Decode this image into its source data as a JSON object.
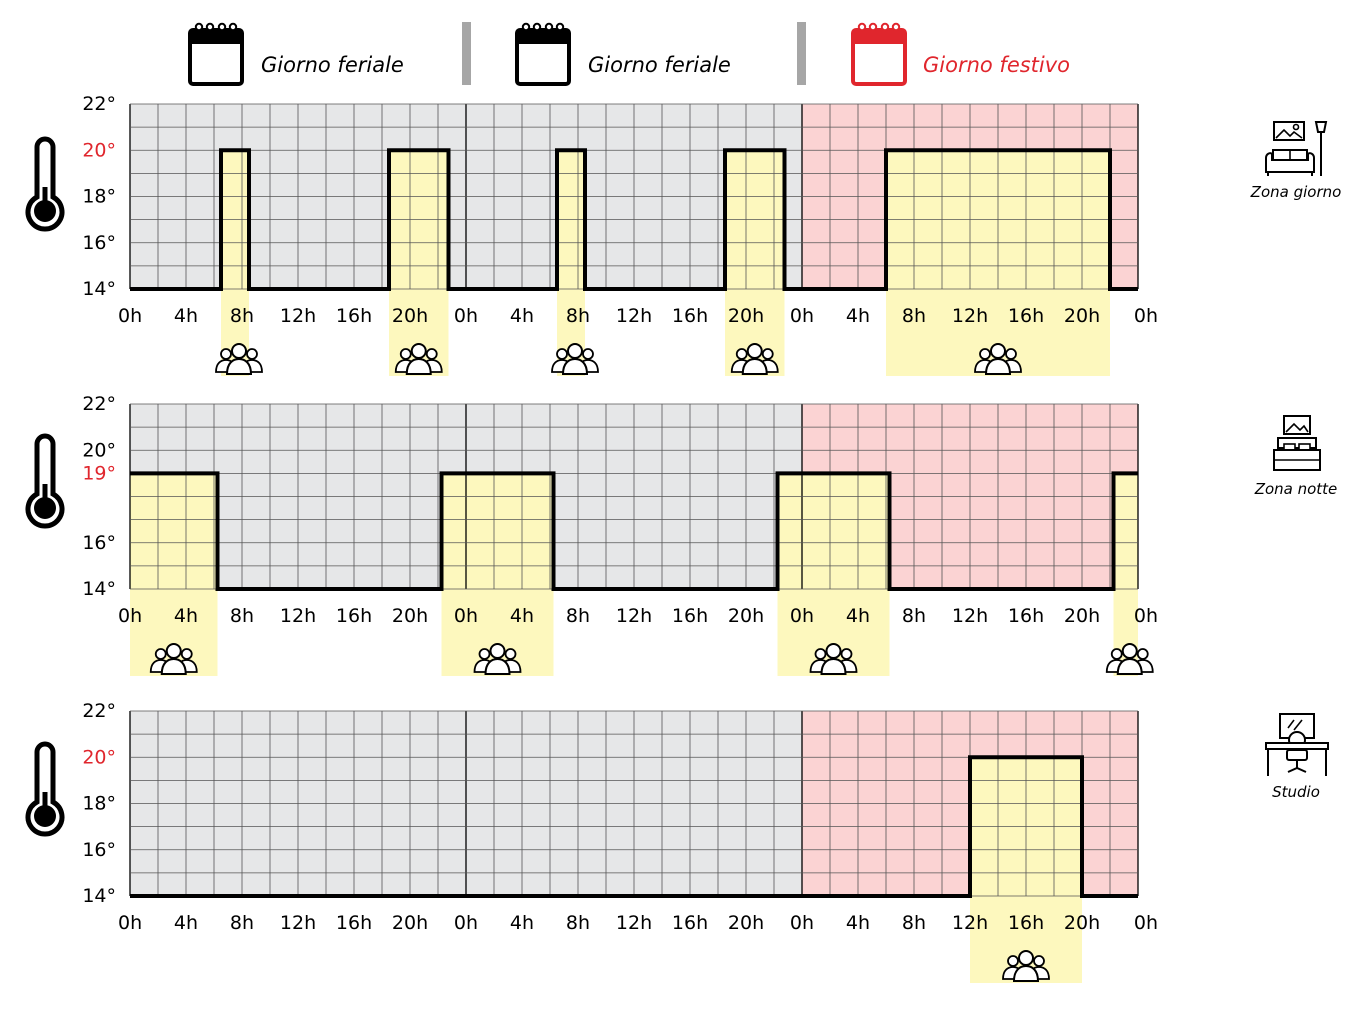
{
  "header": {
    "days": [
      {
        "label": "Giorno feriale",
        "icon": "calendar-icon",
        "color": "#000000"
      },
      {
        "label": "Giorno feriale",
        "icon": "calendar-icon",
        "color": "#000000"
      },
      {
        "label": "Giorno festivo",
        "icon": "calendar-icon",
        "color": "#e0262d"
      }
    ],
    "separator_color": "#a6a6a6"
  },
  "colors": {
    "weekday_bg": "#e6e7e8",
    "holiday_bg": "#fbd3d3",
    "comfort_fill": "#fdf8be",
    "grid": "#555555",
    "line": "#000000",
    "highlight_text": "#e0262d"
  },
  "chart_data": [
    {
      "type": "line",
      "zone": {
        "label": "Zona giorno",
        "icon": "sofa-lamp-icon"
      },
      "x_tick_labels": [
        "0h",
        "4h",
        "8h",
        "12h",
        "16h",
        "20h",
        "0h",
        "4h",
        "8h",
        "12h",
        "16h",
        "20h",
        "0h",
        "4h",
        "8h",
        "12h",
        "16h",
        "20h",
        "0h"
      ],
      "x_tick_hours": [
        0,
        4,
        8,
        12,
        16,
        20,
        24,
        28,
        32,
        36,
        40,
        44,
        48,
        52,
        56,
        60,
        64,
        68,
        72
      ],
      "y_tick_labels": [
        "22°",
        "20°",
        "18°",
        "16°",
        "14°"
      ],
      "y_tick_values": [
        22,
        20,
        18,
        16,
        14
      ],
      "highlight_tick": "20°",
      "xlim": [
        0,
        72
      ],
      "ylim": [
        14,
        22
      ],
      "step_hours": [
        0,
        6.5,
        6.5,
        8.5,
        8.5,
        18.5,
        18.5,
        22.75,
        22.75,
        30.5,
        30.5,
        32.5,
        32.5,
        42.5,
        42.5,
        46.75,
        46.75,
        54,
        54,
        70,
        70,
        72
      ],
      "step_temps": [
        14,
        14,
        20,
        20,
        14,
        14,
        20,
        20,
        14,
        14,
        20,
        20,
        14,
        14,
        20,
        20,
        14,
        14,
        20,
        20,
        14,
        14
      ],
      "occupancy": [
        [
          6.5,
          8.5
        ],
        [
          18.5,
          22.75
        ],
        [
          30.5,
          32.5
        ],
        [
          42.5,
          46.75
        ],
        [
          54,
          70
        ]
      ],
      "occupancy_icon": "people-group-icon"
    },
    {
      "type": "line",
      "zone": {
        "label": "Zona notte",
        "icon": "bed-icon"
      },
      "x_tick_labels": [
        "0h",
        "4h",
        "8h",
        "12h",
        "16h",
        "20h",
        "0h",
        "4h",
        "8h",
        "12h",
        "16h",
        "20h",
        "0h",
        "4h",
        "8h",
        "12h",
        "16h",
        "20h",
        "0h"
      ],
      "x_tick_hours": [
        0,
        4,
        8,
        12,
        16,
        20,
        24,
        28,
        32,
        36,
        40,
        44,
        48,
        52,
        56,
        60,
        64,
        68,
        72
      ],
      "y_tick_labels": [
        "22°",
        "20°",
        "19°",
        "16°",
        "14°"
      ],
      "y_tick_values": [
        22,
        20,
        19,
        16,
        14
      ],
      "highlight_tick": "19°",
      "xlim": [
        0,
        72
      ],
      "ylim": [
        14,
        22
      ],
      "step_hours": [
        0,
        6.25,
        6.25,
        22.25,
        22.25,
        30.25,
        30.25,
        46.25,
        46.25,
        54.25,
        54.25,
        70.25,
        70.25,
        72
      ],
      "step_temps": [
        19,
        19,
        14,
        14,
        19,
        19,
        14,
        14,
        19,
        19,
        14,
        14,
        19,
        19
      ],
      "occupancy": [
        [
          0,
          6.25
        ],
        [
          22.25,
          30.25
        ],
        [
          46.25,
          54.25
        ],
        [
          70.25,
          72
        ]
      ],
      "occupancy_icon": "people-group-icon"
    },
    {
      "type": "line",
      "zone": {
        "label": "Studio",
        "icon": "desk-computer-icon"
      },
      "x_tick_labels": [
        "0h",
        "4h",
        "8h",
        "12h",
        "16h",
        "20h",
        "0h",
        "4h",
        "8h",
        "12h",
        "16h",
        "20h",
        "0h",
        "4h",
        "8h",
        "12h",
        "16h",
        "20h",
        "0h"
      ],
      "x_tick_hours": [
        0,
        4,
        8,
        12,
        16,
        20,
        24,
        28,
        32,
        36,
        40,
        44,
        48,
        52,
        56,
        60,
        64,
        68,
        72
      ],
      "y_tick_labels": [
        "22°",
        "20°",
        "18°",
        "16°",
        "14°"
      ],
      "y_tick_values": [
        22,
        20,
        18,
        16,
        14
      ],
      "highlight_tick": "20°",
      "xlim": [
        0,
        72
      ],
      "ylim": [
        14,
        22
      ],
      "step_hours": [
        0,
        60,
        60,
        68,
        68,
        72
      ],
      "step_temps": [
        14,
        14,
        20,
        20,
        14,
        14
      ],
      "occupancy": [
        [
          60,
          68
        ]
      ],
      "occupancy_icon": "people-group-icon"
    }
  ]
}
